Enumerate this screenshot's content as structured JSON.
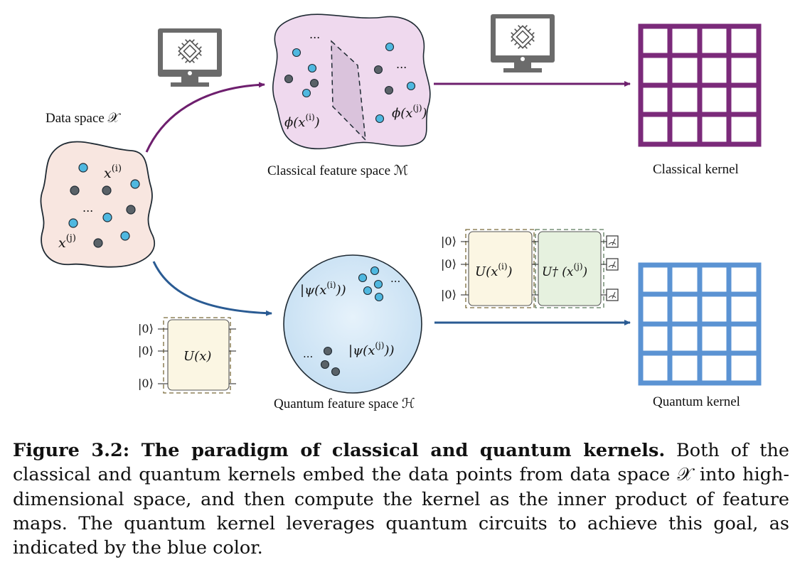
{
  "figure": {
    "data_space_label": "Data space 𝒳",
    "data_points": {
      "xi": "x",
      "xi_sup": "(i)",
      "xj": "x",
      "xj_sup": "(j)",
      "dots": "..."
    },
    "classical": {
      "feature_space_label": "Classical feature space ℳ",
      "phi_i": "ϕ(x",
      "phi_i_sup": "(i)",
      "phi_j": "ϕ(x",
      "phi_j_sup": "(j)",
      "close_paren": ")",
      "dots": "...",
      "kernel_label": "Classical kernel",
      "kernel_color": "#7b2a7a"
    },
    "quantum": {
      "feature_space_label": "Quantum feature space ℋ",
      "psi_i": "|ψ(x",
      "psi_i_sup": "(i)",
      "psi_j": "|ψ(x",
      "psi_j_sup": "(j)",
      "close_ket": "))",
      "dots": "...",
      "kernel_label": "Quantum kernel",
      "kernel_color": "#5b93d3",
      "ket_zero": "|0⟩",
      "circuit_u": "U(x)",
      "circuit_ui": "U(x",
      "circuit_ui_sup": "(i)",
      "circuit_udag": "U† (x",
      "circuit_udag_sup": "(j)"
    },
    "colors": {
      "classical_arrow": "#6e1f6e",
      "quantum_arrow": "#2a5b93",
      "blue_point": "#4fb8e0",
      "gray_point": "#5a6268"
    },
    "icons": [
      "computer-chip-icon",
      "computer-chip-icon",
      "measurement-icon"
    ]
  },
  "caption": {
    "bold": "Figure 3.2: The paradigm of classical and quantum kernels.",
    "text": " Both of the classical and quantum kernels embed the data points from data space 𝒳 into high-dimensional space, and then compute the kernel as the inner product of feature maps. The quantum kernel leverages quantum circuits to achieve this goal, as indicated by the blue color."
  }
}
